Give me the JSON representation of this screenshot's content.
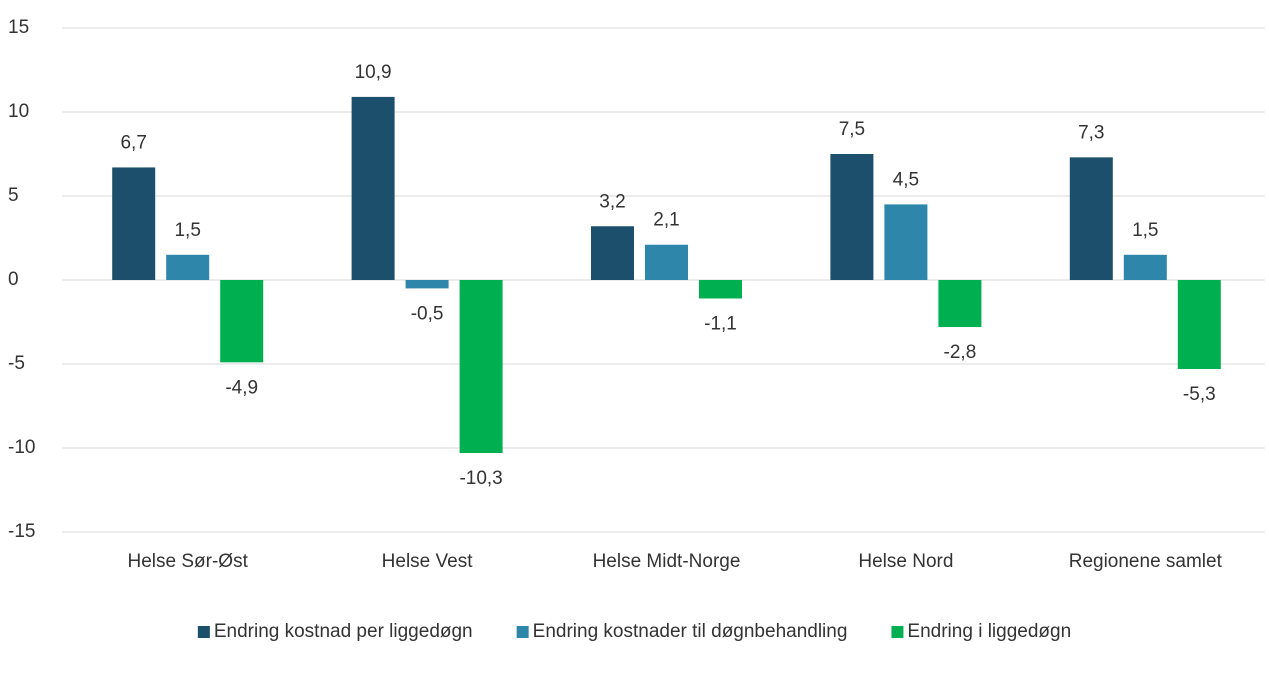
{
  "chart_data": {
    "type": "bar",
    "categories": [
      "Helse Sør-Øst",
      "Helse Vest",
      "Helse Midt-Norge",
      "Helse Nord",
      "Regionene samlet"
    ],
    "series": [
      {
        "name": "Endring kostnad per liggedøgn",
        "color": "#1b4f6b",
        "values": [
          6.7,
          10.9,
          3.2,
          7.5,
          7.3
        ],
        "value_labels": [
          "6,7",
          "10,9",
          "3,2",
          "7,5",
          "7,3"
        ]
      },
      {
        "name": "Endring kostnader til døgnbehandling",
        "color": "#2e86ab",
        "values": [
          1.5,
          -0.5,
          2.1,
          4.5,
          1.5
        ],
        "value_labels": [
          "1,5",
          "-0,5",
          "2,1",
          "4,5",
          "1,5"
        ]
      },
      {
        "name": "Endring i liggedøgn",
        "color": "#00b050",
        "values": [
          -4.9,
          -10.3,
          -1.1,
          -2.8,
          -5.3
        ],
        "value_labels": [
          "-4,9",
          "-10,3",
          "-1,1",
          "-2,8",
          "-5,3"
        ]
      }
    ],
    "ylim": [
      -15,
      15
    ],
    "yticks": [
      -15,
      -10,
      -5,
      0,
      5,
      10,
      15
    ],
    "grid": true,
    "legend": "bottom"
  }
}
